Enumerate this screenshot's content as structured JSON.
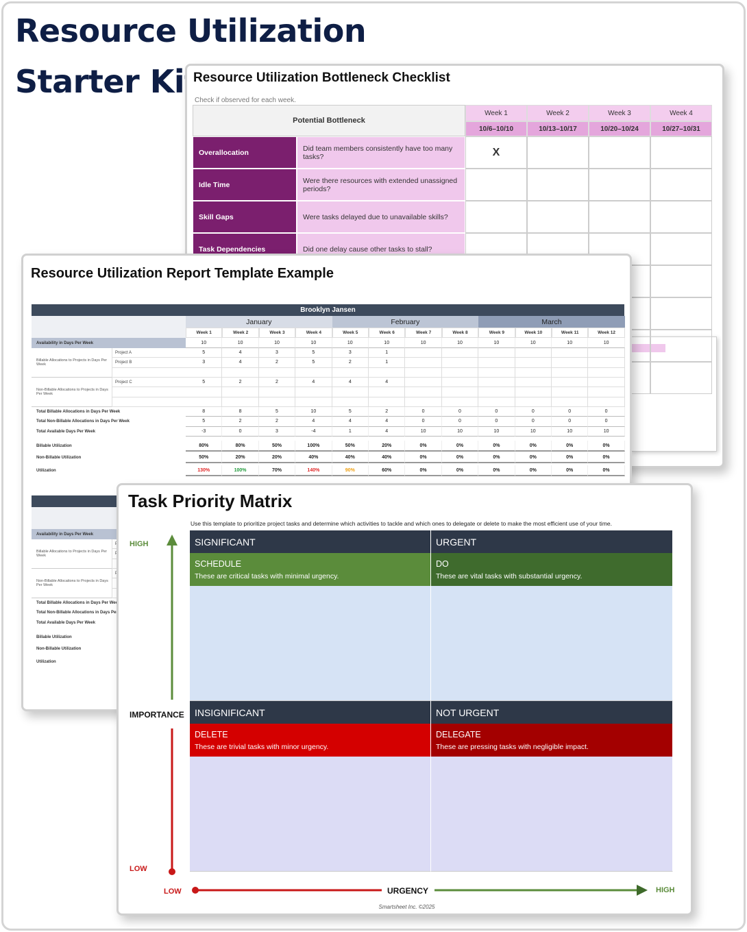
{
  "header": {
    "title_lines": [
      "Resource Utilization",
      "Starter Kit"
    ]
  },
  "checklist": {
    "title": "Resource Utilization Bottleneck Checklist",
    "note": "Check if observed for each week.",
    "column_header": "Potential Bottleneck",
    "weeks": [
      {
        "name": "Week 1",
        "dates": "10/6–10/10"
      },
      {
        "name": "Week 2",
        "dates": "10/13–10/17"
      },
      {
        "name": "Week 3",
        "dates": "10/20–10/24"
      },
      {
        "name": "Week 4",
        "dates": "10/27–10/31"
      }
    ],
    "rows": [
      {
        "label": "Overallocation",
        "question": "Did team members consistently have too many tasks?",
        "marks": [
          "X",
          null,
          null,
          null
        ]
      },
      {
        "label": "Idle Time",
        "question": "Were there resources with extended unassigned periods?",
        "marks": [
          null,
          null,
          null,
          null
        ]
      },
      {
        "label": "Skill Gaps",
        "question": "Were tasks delayed due to unavailable skills?",
        "marks": [
          null,
          null,
          null,
          null
        ]
      },
      {
        "label": "Task Dependencies",
        "question": "Did one delay cause other tasks to stall?",
        "marks": [
          null,
          null,
          null,
          null
        ]
      }
    ]
  },
  "report": {
    "title": "Resource Utilization Report Template Example",
    "person": "Brooklyn Jansen",
    "months": [
      "January",
      "February",
      "March"
    ],
    "weeks": [
      "Week 1",
      "Week 2",
      "Week 3",
      "Week 4",
      "Week 5",
      "Week 6",
      "Week 7",
      "Week 8",
      "Week 9",
      "Week 10",
      "Week 11",
      "Week 12"
    ],
    "availability": {
      "label": "Availability in Days Per Week",
      "values": [
        10,
        10,
        10,
        10,
        10,
        10,
        10,
        10,
        10,
        10,
        10,
        10
      ]
    },
    "billable": {
      "label": "Billable Allocations to Projects in Days Per Week",
      "projects": [
        {
          "name": "Project A",
          "values": [
            5,
            4,
            3,
            5,
            3,
            1,
            null,
            null,
            null,
            null,
            null,
            null
          ]
        },
        {
          "name": "Project B",
          "values": [
            3,
            4,
            2,
            5,
            2,
            1,
            null,
            null,
            null,
            null,
            null,
            null
          ]
        }
      ]
    },
    "non_billable": {
      "label": "Non-Billable Allocations to Projects in Days Per Week",
      "projects": [
        {
          "name": "Project C",
          "values": [
            5,
            2,
            2,
            4,
            4,
            4,
            null,
            null,
            null,
            null,
            null,
            null
          ]
        }
      ]
    },
    "totals": [
      {
        "label": "Total Billable Allocations in Days Per Week",
        "values": [
          8,
          8,
          5,
          10,
          5,
          2,
          0,
          0,
          0,
          0,
          0,
          0
        ]
      },
      {
        "label": "Total Non-Billable Allocations in Days Per Week",
        "values": [
          5,
          2,
          2,
          4,
          4,
          4,
          0,
          0,
          0,
          0,
          0,
          0
        ]
      },
      {
        "label": "Total Available Days Per Week",
        "values": [
          -3,
          0,
          3,
          -4,
          1,
          4,
          10,
          10,
          10,
          10,
          10,
          10
        ]
      }
    ],
    "utilization": [
      {
        "label": "Billable Utilization",
        "values": [
          "80%",
          "80%",
          "50%",
          "100%",
          "50%",
          "20%",
          "0%",
          "0%",
          "0%",
          "0%",
          "0%",
          "0%"
        ]
      },
      {
        "label": "Non-Billable Utilization",
        "values": [
          "50%",
          "20%",
          "20%",
          "40%",
          "40%",
          "40%",
          "0%",
          "0%",
          "0%",
          "0%",
          "0%",
          "0%"
        ]
      },
      {
        "label": "Utilization",
        "values": [
          "130%",
          "100%",
          "70%",
          "140%",
          "90%",
          "60%",
          "0%",
          "0%",
          "0%",
          "0%",
          "0%",
          "0%"
        ],
        "colors": [
          "#e02424",
          "#1f9a3a",
          null,
          "#e02424",
          "#f0a010",
          null,
          null,
          null,
          null,
          null,
          null,
          null
        ]
      }
    ]
  },
  "matrix": {
    "title": "Task Priority Matrix",
    "description": "Use this template to prioritize project tasks and determine which activities to tackle and which ones to delegate or delete to make the most efficient use of your time.",
    "axis": {
      "importance_high": "HIGH",
      "importance": "IMPORTANCE",
      "importance_low": "LOW",
      "urgency_low": "LOW",
      "urgency": "URGENCY",
      "urgency_high": "HIGH"
    },
    "headers": [
      [
        "SIGNIFICANT",
        "URGENT"
      ],
      [
        "INSIGNIFICANT",
        "NOT URGENT"
      ]
    ],
    "quadrants": [
      {
        "title": "SCHEDULE",
        "text": "These are critical tasks with minimal urgency."
      },
      {
        "title": "DO",
        "text": "These are vital tasks with substantial urgency."
      },
      {
        "title": "DELETE",
        "text": "These are trivial tasks with minor urgency."
      },
      {
        "title": "DELEGATE",
        "text": "These are pressing tasks with negligible impact."
      }
    ],
    "footer": "Smartsheet Inc. ©2025"
  }
}
